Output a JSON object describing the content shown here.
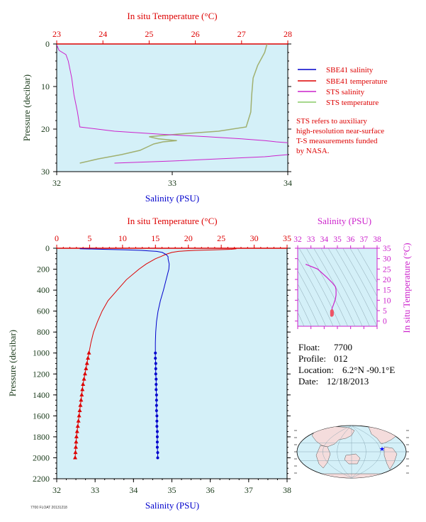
{
  "colors": {
    "plot_bg": "#d4f0f8",
    "salinity": "#0000cc",
    "temperature": "#dd0000",
    "sts_salinity": "#cc22cc",
    "sts_temperature": "#a0b070",
    "ts_axis": "#cc22cc",
    "axis_dark": "#1a3a1a"
  },
  "chart_data": [
    {
      "type": "line",
      "top_axis_label": "In situ Temperature (°C)",
      "bottom_axis_label": "Salinity (PSU)",
      "ylabel": "Pressure (decibar)",
      "temperature_range": [
        23,
        28
      ],
      "salinity_range": [
        32,
        34
      ],
      "pressure_range": [
        0,
        30
      ],
      "temperature_ticks": [
        "23",
        "24",
        "25",
        "26",
        "27",
        "28"
      ],
      "salinity_ticks": [
        "32",
        "33",
        "34"
      ],
      "pressure_ticks": [
        "0",
        "10",
        "20",
        "30"
      ],
      "legend_position": "right",
      "legend": [
        {
          "name": "SBE41 salinity",
          "color": "#0000cc"
        },
        {
          "name": "SBE41 temperature",
          "color": "#dd0000"
        },
        {
          "name": "STS salinity",
          "color": "#cc22cc"
        },
        {
          "name": "STS temperature",
          "color": "#a0b070"
        }
      ],
      "note": [
        "STS refers to auxiliary",
        "high-resolution near-surface",
        "T-S measurements funded",
        "by NASA."
      ],
      "sts_salinity": {
        "pressure": [
          0.2,
          1.5,
          2.5,
          4,
          8,
          12,
          16,
          19.5,
          20.5,
          21.2,
          21.8,
          22.3,
          22.7,
          23.0,
          23.2,
          23.5,
          24.0,
          24.5,
          25.0,
          25.5,
          26.0,
          26.5,
          27.0,
          27.5,
          28.0
        ],
        "salinity": [
          32.0,
          32.02,
          32.08,
          32.1,
          32.13,
          32.15,
          32.18,
          32.2,
          32.5,
          32.9,
          33.3,
          33.6,
          33.8,
          33.9,
          34.0,
          34.3,
          34.5,
          34.3,
          34.1,
          34.6,
          34.0,
          33.8,
          33.4,
          33.0,
          32.5
        ]
      },
      "sts_temperature": {
        "pressure": [
          0,
          2,
          5,
          8,
          12,
          16,
          19.5,
          20.5,
          21.2,
          21.8,
          22.3,
          22.7,
          23.0,
          23.5,
          24.0,
          25.0,
          26.0,
          27.0,
          28.0
        ],
        "temperature": [
          27.55,
          27.5,
          27.35,
          27.25,
          27.22,
          27.2,
          27.1,
          26.5,
          25.6,
          25.0,
          25.2,
          25.6,
          25.3,
          25.1,
          25.0,
          24.8,
          24.4,
          23.9,
          23.5
        ]
      },
      "sbe41_salinity": {
        "pressure": [
          25.5,
          26.5,
          27.5,
          28.0
        ],
        "salinity": [
          34.55,
          34.6,
          34.62,
          34.65
        ]
      }
    },
    {
      "type": "line",
      "top_axis_label": "In situ Temperature (°C)",
      "bottom_axis_label": "Salinity (PSU)",
      "ylabel": "Pressure (decibar)",
      "temperature_range": [
        0,
        35
      ],
      "salinity_range": [
        32,
        38
      ],
      "pressure_range": [
        0,
        2200
      ],
      "temperature_ticks": [
        "0",
        "5",
        "10",
        "15",
        "20",
        "25",
        "30",
        "35"
      ],
      "salinity_ticks": [
        "32",
        "33",
        "34",
        "35",
        "36",
        "37",
        "38"
      ],
      "pressure_ticks": [
        "0",
        "200",
        "400",
        "600",
        "800",
        "1000",
        "1200",
        "1400",
        "1600",
        "1800",
        "2000",
        "2200"
      ],
      "salinity_series": {
        "name": "SBE41 salinity",
        "pressure": [
          5,
          10,
          15,
          20,
          25,
          30,
          40,
          60,
          80,
          100,
          150,
          200,
          300,
          400,
          500,
          600,
          700,
          800,
          900,
          1000
        ],
        "salinity": [
          32.6,
          33.2,
          33.8,
          34.2,
          34.4,
          34.6,
          34.75,
          34.85,
          34.9,
          34.9,
          34.93,
          34.92,
          34.85,
          34.78,
          34.7,
          34.64,
          34.6,
          34.58,
          34.57,
          34.57
        ]
      },
      "salinity_points": {
        "pressure": [
          1000,
          1050,
          1100,
          1150,
          1200,
          1250,
          1300,
          1350,
          1400,
          1450,
          1500,
          1550,
          1600,
          1650,
          1700,
          1750,
          1800,
          1850,
          1900,
          1950,
          2000
        ],
        "salinity": [
          34.57,
          34.57,
          34.58,
          34.58,
          34.58,
          34.59,
          34.59,
          34.59,
          34.6,
          34.6,
          34.6,
          34.6,
          34.61,
          34.61,
          34.61,
          34.62,
          34.62,
          34.62,
          34.62,
          34.63,
          34.63
        ]
      },
      "temperature_series": {
        "name": "SBE41 temperature",
        "pressure": [
          5,
          10,
          15,
          20,
          25,
          30,
          40,
          60,
          80,
          100,
          150,
          200,
          300,
          400,
          500,
          600,
          700,
          800,
          900,
          1000
        ],
        "temperature": [
          27.3,
          26.5,
          24.0,
          21.0,
          19.5,
          18.5,
          17.5,
          16.5,
          15.8,
          15.0,
          13.6,
          12.5,
          10.6,
          9.2,
          7.8,
          6.9,
          6.2,
          5.6,
          5.2,
          4.9
        ]
      },
      "temperature_points": {
        "pressure": [
          1000,
          1050,
          1100,
          1150,
          1200,
          1250,
          1300,
          1350,
          1400,
          1450,
          1500,
          1550,
          1600,
          1650,
          1700,
          1750,
          1800,
          1850,
          1900,
          1950,
          2000
        ],
        "temperature": [
          4.9,
          4.75,
          4.6,
          4.45,
          4.3,
          4.15,
          4.0,
          3.9,
          3.8,
          3.7,
          3.6,
          3.5,
          3.4,
          3.3,
          3.2,
          3.1,
          3.0,
          2.95,
          2.9,
          2.85,
          2.8
        ]
      }
    },
    {
      "type": "scatter",
      "top_axis_label": "Salinity (PSU)",
      "right_axis_label": "In situ Temperature (°C)",
      "salinity_range": [
        32,
        38
      ],
      "temperature_range": [
        -2.5,
        35
      ],
      "salinity_ticks": [
        "32",
        "33",
        "34",
        "35",
        "36",
        "37",
        "38"
      ],
      "temperature_ticks": [
        "0",
        "5",
        "10",
        "15",
        "20",
        "25",
        "30",
        "35"
      ],
      "ts_curve": {
        "salinity": [
          32.6,
          33.5,
          34.2,
          34.6,
          34.85,
          34.9,
          34.9,
          34.85,
          34.7,
          34.6,
          34.57,
          34.58,
          34.6,
          34.62
        ],
        "temperature": [
          27.3,
          25.0,
          21.0,
          18.5,
          16.5,
          15.0,
          12.5,
          10.6,
          7.8,
          6.2,
          4.9,
          4.0,
          3.4,
          2.8
        ]
      }
    }
  ],
  "info": {
    "float_label": "Float:",
    "float_value": "7700",
    "profile_label": "Profile:",
    "profile_value": "012",
    "location_label": "Location:",
    "location_value": "6.2°N  -90.1°E",
    "date_label": "Date:",
    "date_value": "12/18/2013"
  },
  "map": {
    "marker_color": "#0000ff"
  },
  "footer_text": "7700 FLOAT 20131218"
}
